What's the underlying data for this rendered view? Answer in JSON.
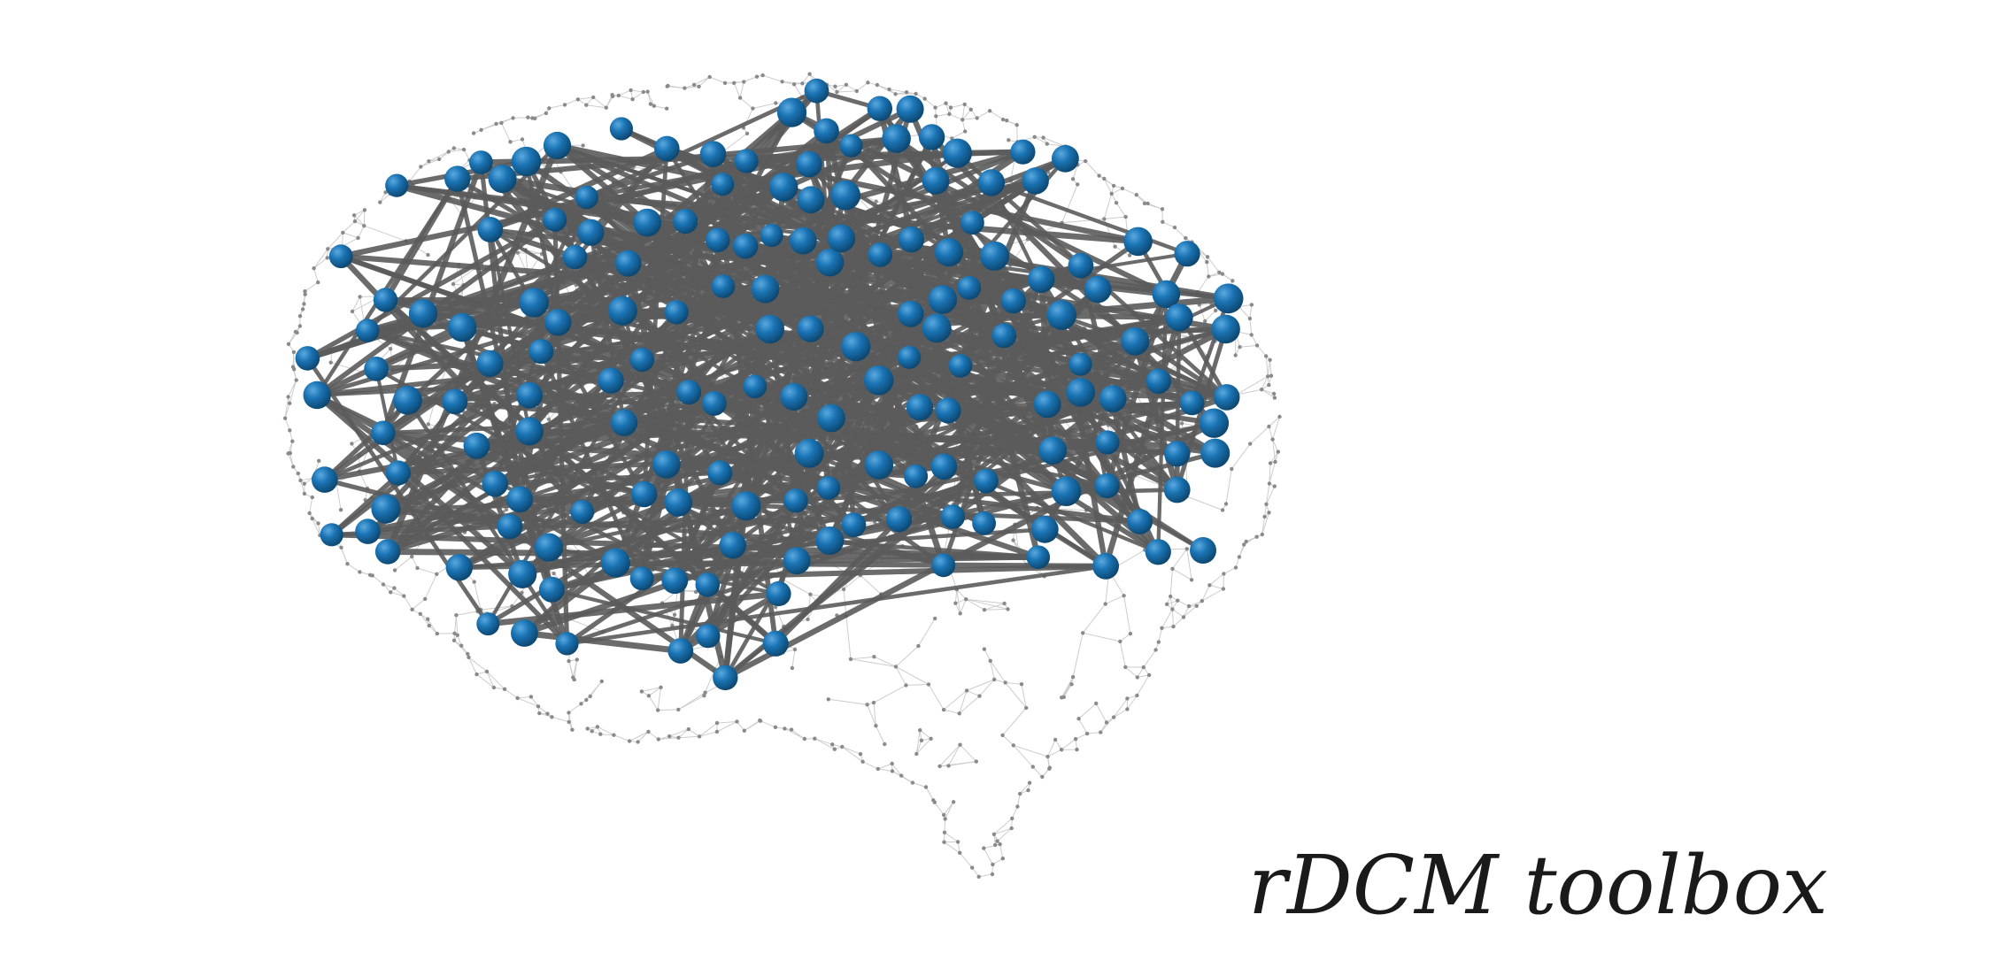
{
  "title": "rDCM toolbox",
  "colors": {
    "background": "#ffffff",
    "node_fill": "#1a73b3",
    "node_highlight": "#5aa9e0",
    "node_shadow": "#0d4770",
    "edge": "#5b5b5b",
    "mesh_line": "#c4c4c4",
    "mesh_dot": "#8a8a8a",
    "title_text": "#1a1a1a"
  },
  "icons": {
    "mesh": "brain-mesh-icon",
    "node": "network-node-icon",
    "edge": "connection-edge-icon"
  }
}
